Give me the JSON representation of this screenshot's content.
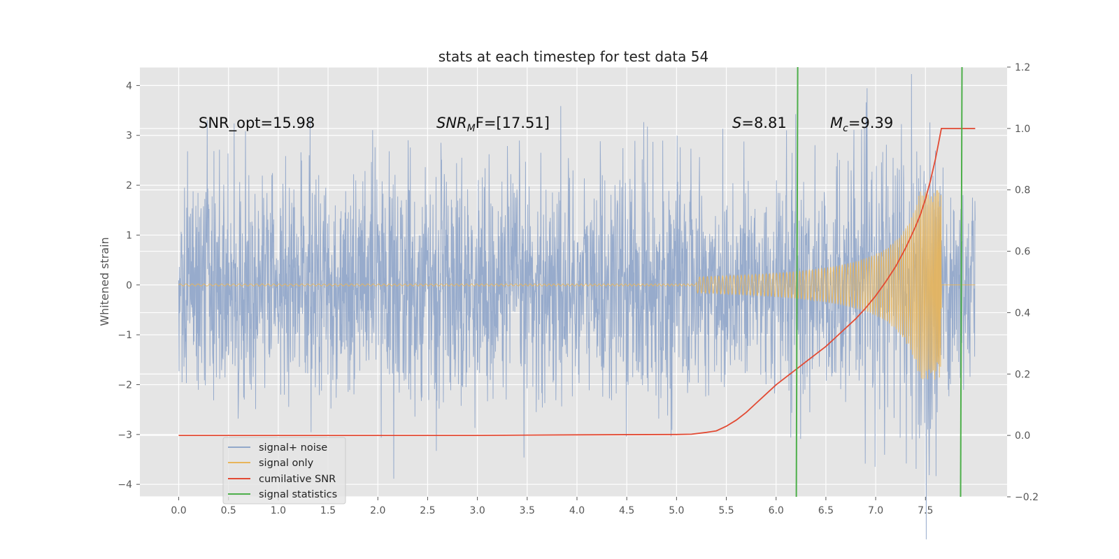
{
  "chart_data": {
    "type": "line",
    "title": "stats at each timestep for test data 54",
    "ylabel": "Whitened strain",
    "xlabel": "",
    "xlim": [
      -0.39,
      8.32
    ],
    "ylim": [
      -4.25,
      4.37
    ],
    "y2lim": [
      -0.2,
      1.2
    ],
    "xticks": [
      "0.0",
      "0.5",
      "1.0",
      "1.5",
      "2.0",
      "2.5",
      "3.0",
      "3.5",
      "4.0",
      "4.5",
      "5.0",
      "5.5",
      "6.0",
      "6.5",
      "7.0",
      "7.5"
    ],
    "yticks": [
      "−4",
      "−3",
      "−2",
      "−1",
      "0",
      "1",
      "2",
      "3",
      "4"
    ],
    "y2ticks": [
      "−0.2",
      "0.0",
      "0.2",
      "0.4",
      "0.6",
      "0.8",
      "1.0",
      "1.2"
    ],
    "annotations": {
      "snr_opt": "SNR_opt=15.98",
      "snr_mf_main": "SNR",
      "snr_mf_sub": "M",
      "snr_mf_rest": "F=[17.51]",
      "s_sym": "S",
      "s_val": "=8.81",
      "mc_sym": "M",
      "mc_sub": "c",
      "mc_val": "=9.39"
    },
    "series": [
      {
        "name": "signal+ noise",
        "color": "#92a8ca",
        "note": "whitened noise, roughly gaussian sigma ~1.2 from t=0.0 to t=8.0"
      },
      {
        "name": "signal only",
        "color": "#e8b55a",
        "note": "chirp starting ~5.2, peak amplitude ~1.9 at ~7.65, merger then zero"
      },
      {
        "name": "cumilative SNR",
        "color": "#e24a33",
        "axis": "right",
        "x": [
          0.0,
          1.0,
          2.0,
          3.0,
          4.0,
          5.0,
          5.15,
          5.3,
          5.4,
          5.5,
          5.6,
          5.7,
          5.8,
          5.9,
          6.0,
          6.1,
          6.2,
          6.3,
          6.4,
          6.5,
          6.6,
          6.7,
          6.8,
          6.9,
          7.0,
          7.1,
          7.2,
          7.3,
          7.4,
          7.45,
          7.5,
          7.55,
          7.6,
          7.63,
          7.66,
          7.8,
          8.0
        ],
        "y": [
          0.0,
          0.0,
          0.0,
          0.0,
          0.002,
          0.003,
          0.004,
          0.01,
          0.015,
          0.03,
          0.05,
          0.075,
          0.105,
          0.135,
          0.165,
          0.19,
          0.215,
          0.24,
          0.265,
          0.29,
          0.32,
          0.35,
          0.38,
          0.415,
          0.455,
          0.5,
          0.55,
          0.61,
          0.68,
          0.72,
          0.77,
          0.83,
          0.9,
          0.95,
          1.0,
          1.0,
          1.0
        ]
      },
      {
        "name": "signal statistics",
        "color": "#4daf4a",
        "vlines": [
          6.21,
          7.86
        ]
      }
    ],
    "legend": [
      "signal+ noise",
      "signal only",
      "cumilative SNR",
      "signal statistics"
    ],
    "legend_position": "lower-left",
    "grid": true
  }
}
